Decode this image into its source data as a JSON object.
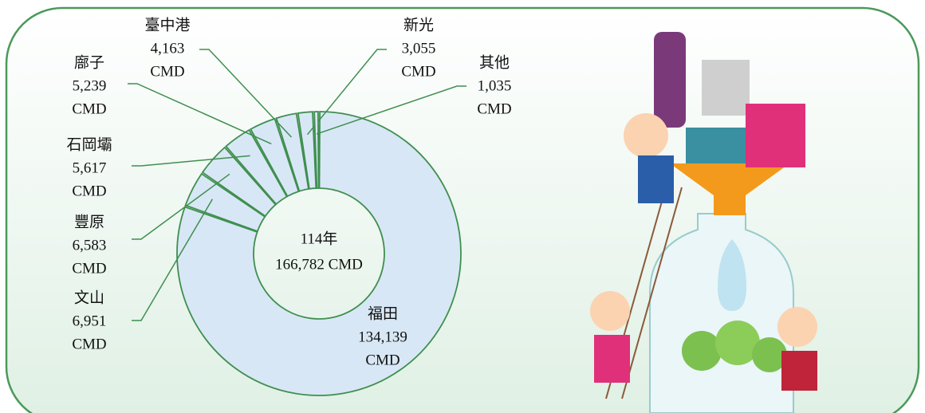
{
  "chart_data": {
    "type": "donut",
    "center_label": [
      "114年",
      "166,782 CMD"
    ],
    "unit": "CMD",
    "categories": [
      "福田",
      "文山",
      "豐原",
      "石岡壩",
      "廍子",
      "臺中港",
      "新光",
      "其他"
    ],
    "values": [
      134139,
      6951,
      6583,
      5617,
      5239,
      4163,
      3055,
      1035
    ],
    "value_labels": [
      "134,139",
      "6,951",
      "6,583",
      "5,617",
      "5,239",
      "4,163",
      "3,055",
      "1,035"
    ],
    "color": "#d8e7f5",
    "stroke": "#3f8f4f"
  }
}
